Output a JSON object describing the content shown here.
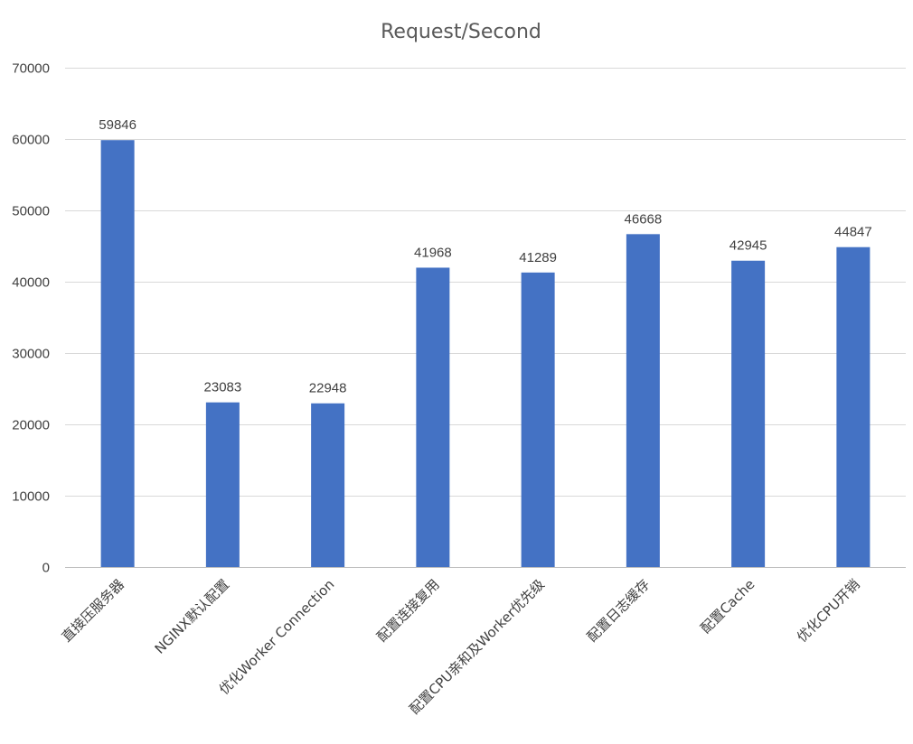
{
  "chart_data": {
    "type": "bar",
    "title": "Request/Second",
    "categories": [
      "直接压服务器",
      "NGINX默认配置",
      "优化Worker Connection",
      "配置连接复用",
      "配置CPU亲和及Worker优先级",
      "配置日志缓存",
      "配置Cache",
      "优化CPU开销"
    ],
    "series": [
      {
        "values": [
          59846,
          23083,
          22948,
          41968,
          41289,
          46668,
          42945,
          44847
        ]
      }
    ],
    "ylim": [
      0,
      70000
    ],
    "yticks": [
      0,
      10000,
      20000,
      30000,
      40000,
      50000,
      60000,
      70000
    ],
    "grid": true,
    "legend": "none",
    "data_labels": true,
    "bar_color": "#4472c4"
  }
}
